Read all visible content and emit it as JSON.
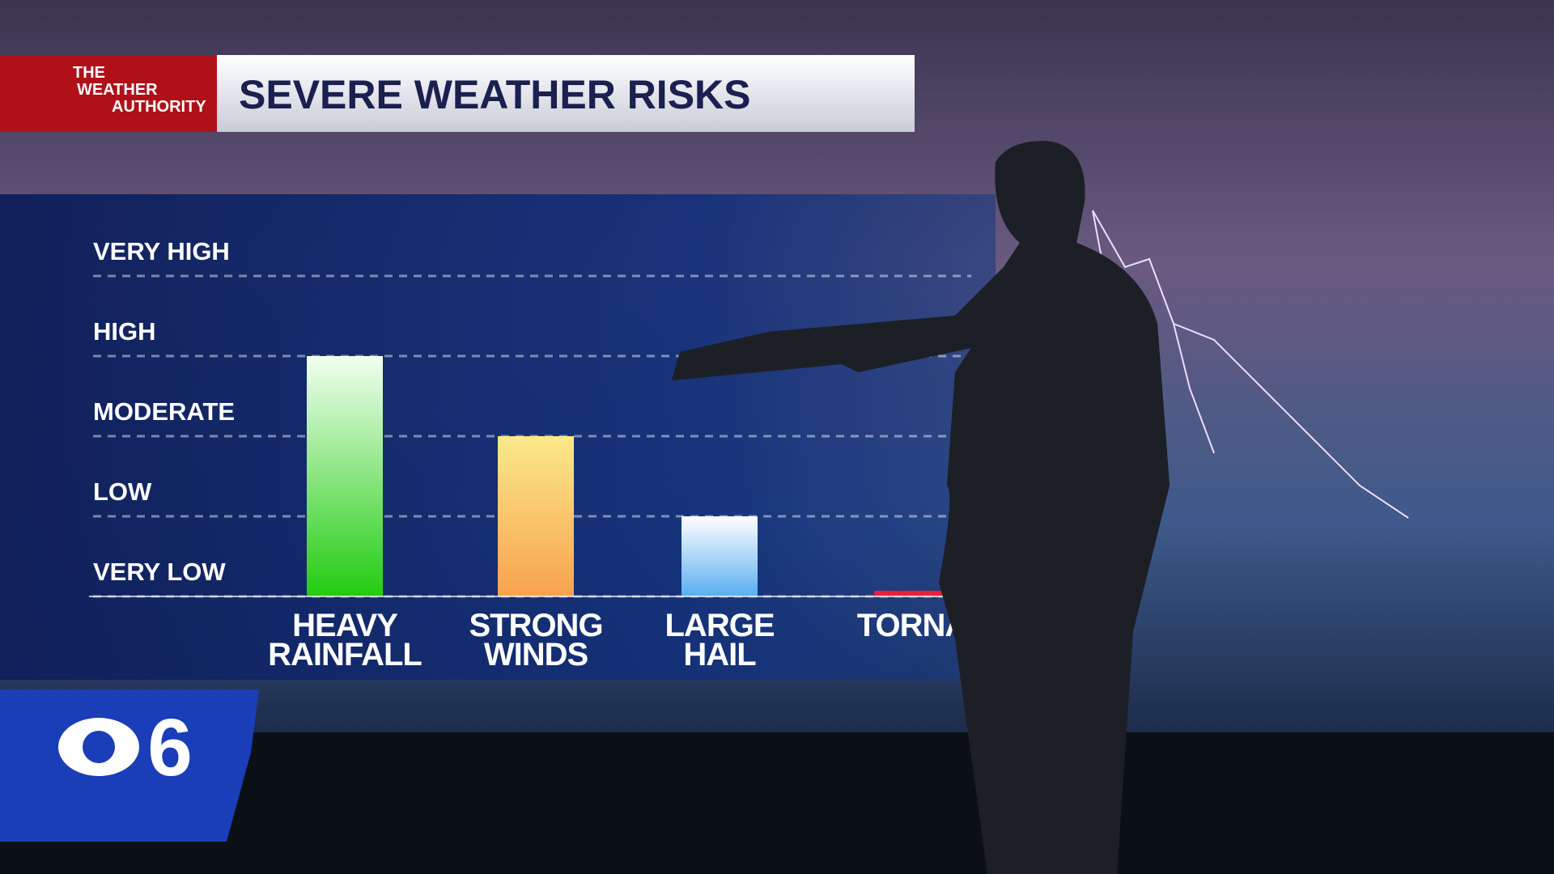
{
  "header": {
    "brand": [
      "THE",
      "WEATHER",
      "AUTHORITY"
    ],
    "title": "SEVERE WEATHER RISKS"
  },
  "station": {
    "channel": "6"
  },
  "chart_data": {
    "type": "bar",
    "categories": [
      "HEAVY RAINFALL",
      "STRONG WINDS",
      "LARGE HAIL",
      "TORNA"
    ],
    "values": [
      3,
      2,
      1,
      0.07
    ],
    "colors": [
      [
        "#f2fff0",
        "#22cc11"
      ],
      [
        "#fbe98a",
        "#f8a24e"
      ],
      [
        "#ffffff",
        "#5aaef0"
      ],
      [
        "#e8203c",
        "#e8203c"
      ]
    ],
    "ylim": [
      0,
      4
    ],
    "yticks": [
      {
        "value": 0,
        "label": "VERY LOW"
      },
      {
        "value": 1,
        "label": "LOW"
      },
      {
        "value": 2,
        "label": "MODERATE"
      },
      {
        "value": 3,
        "label": "HIGH"
      },
      {
        "value": 4,
        "label": "VERY HIGH"
      }
    ],
    "grid": true
  }
}
